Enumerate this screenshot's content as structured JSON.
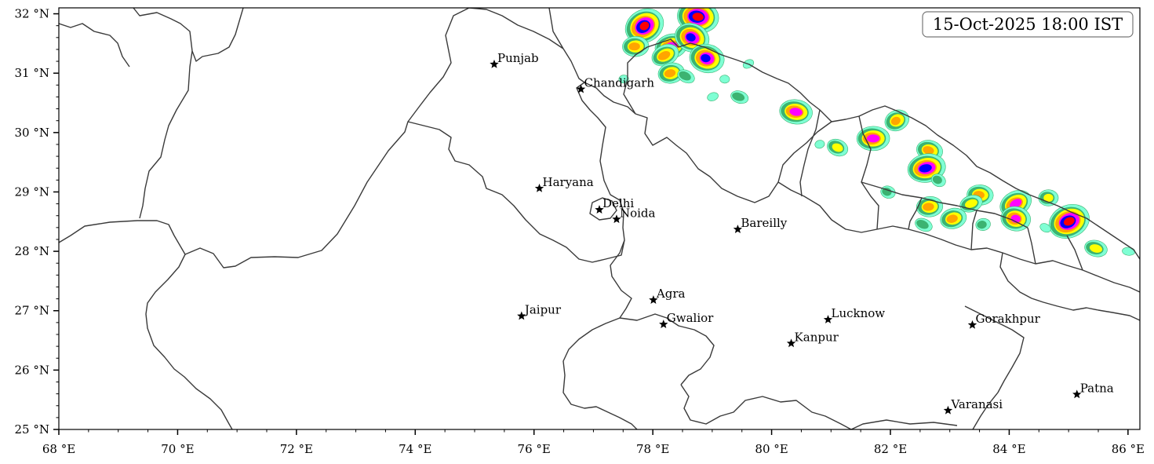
{
  "map": {
    "timestamp": "15-Oct-2025 18:00 IST",
    "lon_range": [
      68,
      86.2
    ],
    "lat_range": [
      25,
      32.1
    ],
    "x_ticks": [
      {
        "value": 68,
        "label": "68 °E"
      },
      {
        "value": 70,
        "label": "70 °E"
      },
      {
        "value": 72,
        "label": "72 °E"
      },
      {
        "value": 74,
        "label": "74 °E"
      },
      {
        "value": 76,
        "label": "76 °E"
      },
      {
        "value": 78,
        "label": "78 °E"
      },
      {
        "value": 80,
        "label": "80 °E"
      },
      {
        "value": 82,
        "label": "82 °E"
      },
      {
        "value": 84,
        "label": "84 °E"
      },
      {
        "value": 86,
        "label": "86 °E"
      }
    ],
    "y_ticks": [
      {
        "value": 25,
        "label": "25 °N"
      },
      {
        "value": 26,
        "label": "26 °N"
      },
      {
        "value": 27,
        "label": "27 °N"
      },
      {
        "value": 28,
        "label": "28 °N"
      },
      {
        "value": 29,
        "label": "29 °N"
      },
      {
        "value": 30,
        "label": "30 °N"
      },
      {
        "value": 31,
        "label": "31 °N"
      },
      {
        "value": 32,
        "label": "32 °N"
      }
    ],
    "cities": [
      {
        "name": "Punjab",
        "lon": 75.33,
        "lat": 31.15
      },
      {
        "name": "Chandigarh",
        "lon": 76.79,
        "lat": 30.73
      },
      {
        "name": "Haryana",
        "lon": 76.09,
        "lat": 29.06
      },
      {
        "name": "Delhi",
        "lon": 77.1,
        "lat": 28.7
      },
      {
        "name": "Noida",
        "lon": 77.39,
        "lat": 28.54
      },
      {
        "name": "Bareilly",
        "lon": 79.43,
        "lat": 28.37
      },
      {
        "name": "Agra",
        "lon": 78.01,
        "lat": 27.18
      },
      {
        "name": "Jaipur",
        "lon": 75.79,
        "lat": 26.91
      },
      {
        "name": "Gwalior",
        "lon": 78.18,
        "lat": 26.77
      },
      {
        "name": "Lucknow",
        "lon": 80.95,
        "lat": 26.85
      },
      {
        "name": "Kanpur",
        "lon": 80.33,
        "lat": 26.45
      },
      {
        "name": "Gorakhpur",
        "lon": 83.38,
        "lat": 26.76
      },
      {
        "name": "Varanasi",
        "lon": 82.97,
        "lat": 25.32
      },
      {
        "name": "Patna",
        "lon": 85.14,
        "lat": 25.59
      }
    ],
    "precip_levels": [
      {
        "level": 1,
        "color": "#7fffd4"
      },
      {
        "level": 2,
        "color": "#3cb371"
      },
      {
        "level": 3,
        "color": "#ffff00"
      },
      {
        "level": 4,
        "color": "#ffa500"
      },
      {
        "level": 5,
        "color": "#ff00ff"
      },
      {
        "level": 6,
        "color": "#0000ff"
      },
      {
        "level": 7,
        "color": "#ff0000"
      }
    ],
    "precip_cells": [
      {
        "lon": 77.85,
        "lat": 31.79,
        "max_level": 7
      },
      {
        "lon": 78.75,
        "lat": 31.95,
        "max_level": 7
      },
      {
        "lon": 78.3,
        "lat": 31.45,
        "max_level": 5
      },
      {
        "lon": 78.65,
        "lat": 31.6,
        "max_level": 6
      },
      {
        "lon": 77.7,
        "lat": 31.45,
        "max_level": 4
      },
      {
        "lon": 78.2,
        "lat": 31.3,
        "max_level": 4
      },
      {
        "lon": 78.9,
        "lat": 31.25,
        "max_level": 6
      },
      {
        "lon": 78.3,
        "lat": 31.0,
        "max_level": 4
      },
      {
        "lon": 78.55,
        "lat": 30.95,
        "max_level": 2
      },
      {
        "lon": 79.2,
        "lat": 30.9,
        "max_level": 1
      },
      {
        "lon": 79.0,
        "lat": 30.6,
        "max_level": 1
      },
      {
        "lon": 79.45,
        "lat": 30.6,
        "max_level": 2
      },
      {
        "lon": 77.5,
        "lat": 30.9,
        "max_level": 1
      },
      {
        "lon": 79.6,
        "lat": 31.15,
        "max_level": 1
      },
      {
        "lon": 80.4,
        "lat": 30.35,
        "max_level": 5
      },
      {
        "lon": 80.8,
        "lat": 29.8,
        "max_level": 1
      },
      {
        "lon": 81.1,
        "lat": 29.75,
        "max_level": 3
      },
      {
        "lon": 81.7,
        "lat": 29.9,
        "max_level": 5
      },
      {
        "lon": 82.1,
        "lat": 30.2,
        "max_level": 4
      },
      {
        "lon": 82.65,
        "lat": 29.7,
        "max_level": 4
      },
      {
        "lon": 82.6,
        "lat": 29.4,
        "max_level": 6
      },
      {
        "lon": 82.8,
        "lat": 29.2,
        "max_level": 2
      },
      {
        "lon": 83.5,
        "lat": 28.95,
        "max_level": 4
      },
      {
        "lon": 83.35,
        "lat": 28.8,
        "max_level": 3
      },
      {
        "lon": 81.95,
        "lat": 29.0,
        "max_level": 2
      },
      {
        "lon": 82.65,
        "lat": 28.75,
        "max_level": 4
      },
      {
        "lon": 84.1,
        "lat": 28.8,
        "max_level": 5
      },
      {
        "lon": 84.1,
        "lat": 28.55,
        "max_level": 5
      },
      {
        "lon": 83.05,
        "lat": 28.55,
        "max_level": 4
      },
      {
        "lon": 82.55,
        "lat": 28.45,
        "max_level": 2
      },
      {
        "lon": 84.65,
        "lat": 28.9,
        "max_level": 3
      },
      {
        "lon": 85.0,
        "lat": 28.5,
        "max_level": 7
      },
      {
        "lon": 85.45,
        "lat": 28.05,
        "max_level": 3
      },
      {
        "lon": 83.55,
        "lat": 28.45,
        "max_level": 2
      },
      {
        "lon": 84.6,
        "lat": 28.4,
        "max_level": 1
      },
      {
        "lon": 86.0,
        "lat": 28.0,
        "max_level": 1
      }
    ]
  }
}
